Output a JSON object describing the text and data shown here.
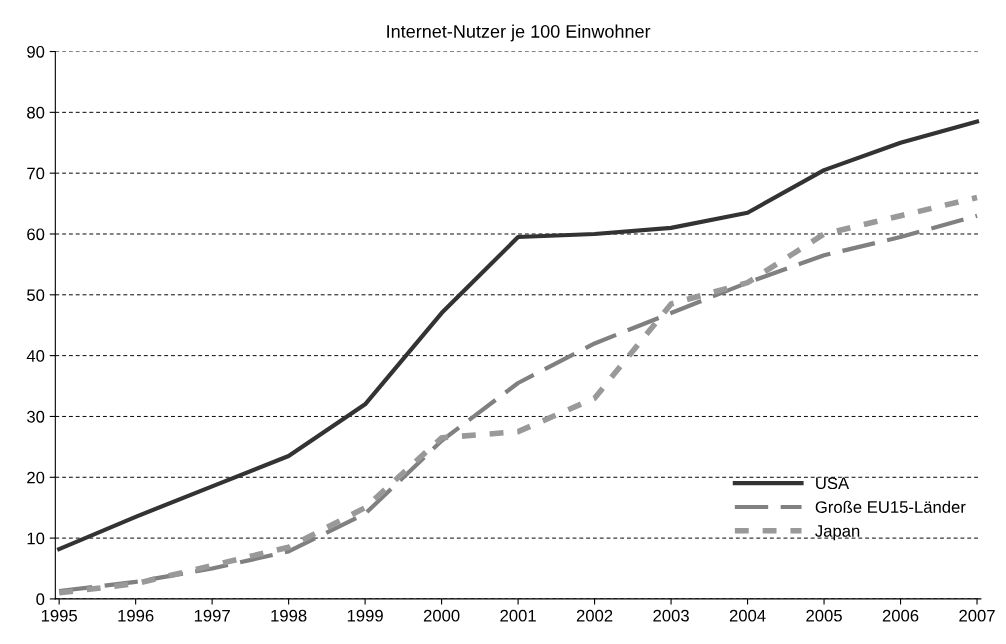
{
  "chart_data": {
    "type": "line",
    "title": "Internet-Nutzer je 100 Einwohner",
    "categories": [
      "1995",
      "1996",
      "1997",
      "1998",
      "1999",
      "2000",
      "2001",
      "2002",
      "2003",
      "2004",
      "2005",
      "2006",
      "2007"
    ],
    "series": [
      {
        "name": "USA",
        "color": "#333333",
        "line_style": "solid",
        "values": [
          8.2,
          13.5,
          18.5,
          23.5,
          32,
          47,
          59.5,
          60,
          61,
          63.5,
          70.5,
          75,
          78.5
        ]
      },
      {
        "name": "Große EU15-Länder",
        "color": "#808080",
        "line_style": "dashed",
        "values": [
          1.3,
          2.8,
          5,
          7.8,
          14,
          26,
          35.5,
          42,
          47,
          52,
          56.5,
          59.5,
          63
        ]
      },
      {
        "name": "Japan",
        "color": "#999999",
        "line_style": "dotted",
        "values": [
          1,
          2.5,
          5.5,
          8.5,
          15,
          26.5,
          27.5,
          33,
          48.5,
          52,
          60,
          63,
          66
        ]
      }
    ],
    "ylim": [
      0,
      90
    ],
    "yticks": [
      0,
      10,
      20,
      30,
      40,
      50,
      60,
      70,
      80,
      90
    ],
    "grid": "y",
    "legend": "bottom right",
    "marker": "none"
  }
}
